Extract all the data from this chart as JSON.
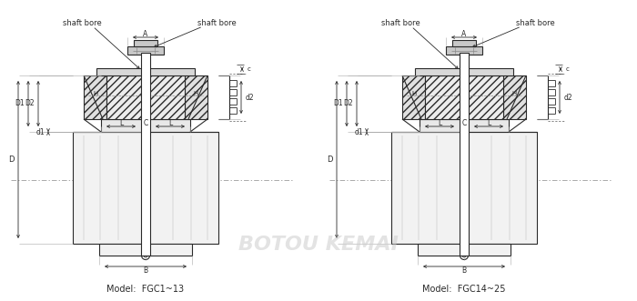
{
  "bg_color": "#ffffff",
  "line_color": "#2a2a2a",
  "dim_color": "#2a2a2a",
  "watermark_color": "#cccccc",
  "title1": "Model:  FGC1~13",
  "title2": "Model:  FGC14~25",
  "watermark": "BOTOU KEMAI",
  "shaft_bore": "shaft bore",
  "figsize": [
    7.0,
    3.31
  ],
  "dpi": 100
}
